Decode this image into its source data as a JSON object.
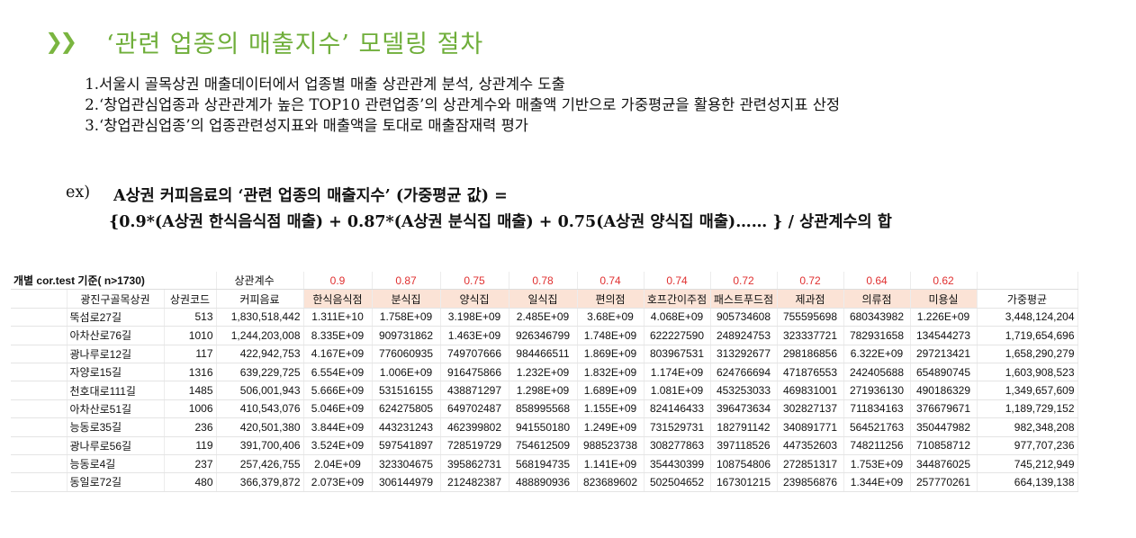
{
  "slide": {
    "title": "‘관련 업종의 매출지수’ 모델링 절차",
    "steps": [
      {
        "n": "1.",
        "text": "서울시 골목상권 매출데이터에서 업종별 매출 상관관계 분석, 상관계수 도출"
      },
      {
        "n": "2.",
        "text": "‘창업관심업종과 상관관계가 높은 TOP10 관련업종’의 상관계수와 매출액 기반으로 가중평균을 활용한 관련성지표 산정"
      },
      {
        "n": "3.",
        "text": "‘창업관심업종’의 업종관련성지표와 매출액을 토대로 매출잠재력 평가"
      }
    ],
    "example_label": "ex)",
    "example_line1": "A상권 커피음료의 ‘관련 업종의 매출지수’ (가중평균 값) =",
    "example_line2": "{0.9*(A상권 한식음식점 매출) + 0.87*(A상권 분식집 매출) + 0.75(A상권 양식집 매출)…… } / 상관계수의 합"
  },
  "table": {
    "corner_label": "개별 cor.test 기준( n>1730)",
    "coef_label": "상관계수",
    "coefficients": [
      "0.9",
      "0.87",
      "0.75",
      "0.78",
      "0.74",
      "0.74",
      "0.72",
      "0.72",
      "0.64",
      "0.62"
    ],
    "headers": [
      "광진구골목상권",
      "상권코드",
      "커피음료",
      "한식음식점",
      "분식집",
      "양식집",
      "일식집",
      "편의점",
      "호프간이주점",
      "패스트푸드점",
      "제과점",
      "의류점",
      "미용실",
      "가중평균"
    ],
    "rows": [
      [
        "뚝섬로27길",
        "513",
        "1,830,518,442",
        "1.311E+10",
        "1.758E+09",
        "3.198E+09",
        "2.485E+09",
        "3.68E+09",
        "4.068E+09",
        "905734608",
        "755595698",
        "680343982",
        "1.226E+09",
        "3,448,124,204"
      ],
      [
        "아차산로76길",
        "1010",
        "1,244,203,008",
        "8.335E+09",
        "909731862",
        "1.463E+09",
        "926346799",
        "1.748E+09",
        "622227590",
        "248924753",
        "323337721",
        "782931658",
        "134544273",
        "1,719,654,696"
      ],
      [
        "광나루로12길",
        "117",
        "422,942,753",
        "4.167E+09",
        "776060935",
        "749707666",
        "984466511",
        "1.869E+09",
        "803967531",
        "313292677",
        "298186856",
        "6.322E+09",
        "297213421",
        "1,658,290,279"
      ],
      [
        "자양로15길",
        "1316",
        "639,229,725",
        "6.554E+09",
        "1.006E+09",
        "916475866",
        "1.232E+09",
        "1.832E+09",
        "1.174E+09",
        "624766694",
        "471876553",
        "242405688",
        "654890745",
        "1,603,908,523"
      ],
      [
        "천호대로111길",
        "1485",
        "506,001,943",
        "5.666E+09",
        "531516155",
        "438871297",
        "1.298E+09",
        "1.689E+09",
        "1.081E+09",
        "453253033",
        "469831001",
        "271936130",
        "490186329",
        "1,349,657,609"
      ],
      [
        "아차산로51길",
        "1006",
        "410,543,076",
        "5.046E+09",
        "624275805",
        "649702487",
        "858995568",
        "1.155E+09",
        "824146433",
        "396473634",
        "302827137",
        "711834163",
        "376679671",
        "1,189,729,152"
      ],
      [
        "능동로35길",
        "236",
        "420,501,380",
        "3.844E+09",
        "443231243",
        "462399802",
        "941550180",
        "1.249E+09",
        "731529731",
        "182791142",
        "340891771",
        "564521763",
        "350447982",
        "982,348,208"
      ],
      [
        "광나루로56길",
        "119",
        "391,700,406",
        "3.524E+09",
        "597541897",
        "728519729",
        "754612509",
        "988523738",
        "308277863",
        "397118526",
        "447352603",
        "748211256",
        "710858712",
        "977,707,236"
      ],
      [
        "능동로4길",
        "237",
        "257,426,755",
        "2.04E+09",
        "323304675",
        "395862731",
        "568194735",
        "1.141E+09",
        "354430399",
        "108754806",
        "272851317",
        "1.753E+09",
        "344876025",
        "745,212,949"
      ],
      [
        "동일로72길",
        "480",
        "366,379,872",
        "2.073E+09",
        "306144979",
        "212482387",
        "488890936",
        "823689602",
        "502504652",
        "167301215",
        "239856876",
        "1.344E+09",
        "257770261",
        "664,139,138"
      ]
    ]
  }
}
